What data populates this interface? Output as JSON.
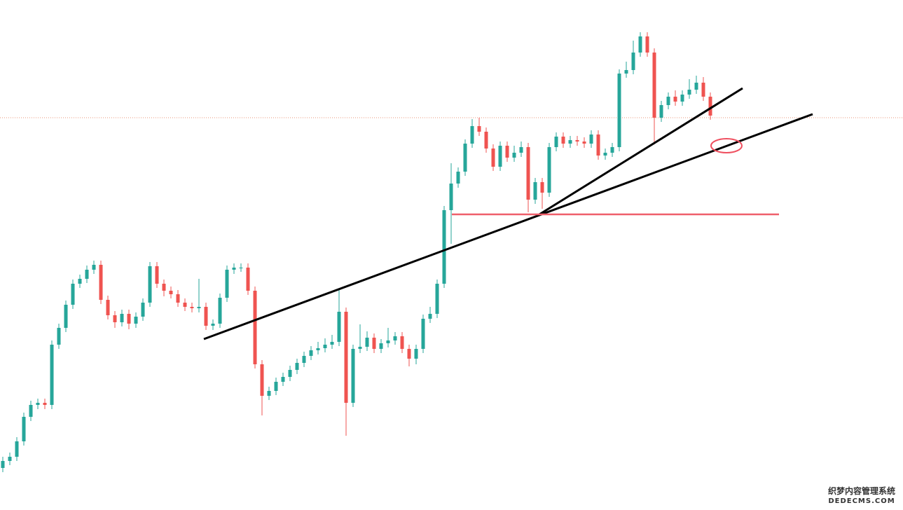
{
  "chart_data": {
    "type": "candlestick",
    "up_color": "#26a69a",
    "down_color": "#ef5350",
    "ylim": [
      0,
      728
    ],
    "open": [
      60,
      70,
      76,
      98,
      133,
      150,
      153,
      150,
      236,
      260,
      293,
      323,
      330,
      343,
      350,
      300,
      278,
      268,
      280,
      266,
      276,
      296,
      348,
      323,
      313,
      308,
      296,
      290,
      288,
      290,
      263,
      266,
      303,
      343,
      346,
      346,
      313,
      208,
      163,
      170,
      183,
      190,
      200,
      210,
      220,
      228,
      231,
      236,
      240,
      283,
      153,
      230,
      233,
      246,
      230,
      238,
      242,
      248,
      230,
      216,
      230,
      273,
      280,
      323,
      428,
      466,
      483,
      523,
      548,
      540,
      516,
      490,
      520,
      503,
      510,
      518,
      443,
      468,
      453,
      518,
      533,
      523,
      528,
      526,
      523,
      536,
      506,
      510,
      518,
      623,
      628,
      653,
      676,
      653,
      560,
      578,
      590,
      583,
      593,
      600,
      610,
      590
    ],
    "high": [
      76,
      82,
      104,
      139,
      156,
      159,
      159,
      242,
      266,
      299,
      329,
      336,
      349,
      356,
      356,
      306,
      284,
      286,
      286,
      282,
      302,
      354,
      354,
      329,
      319,
      314,
      302,
      296,
      330,
      296,
      272,
      309,
      349,
      352,
      352,
      352,
      319,
      214,
      176,
      189,
      196,
      206,
      216,
      226,
      234,
      240,
      245,
      250,
      316,
      289,
      236,
      265,
      255,
      252,
      244,
      260,
      254,
      254,
      236,
      236,
      279,
      290,
      329,
      434,
      495,
      489,
      529,
      558,
      560,
      546,
      522,
      526,
      526,
      520,
      526,
      524,
      474,
      474,
      524,
      539,
      539,
      534,
      534,
      532,
      542,
      542,
      516,
      524,
      629,
      640,
      670,
      682,
      682,
      659,
      584,
      596,
      599,
      599,
      615,
      620,
      618,
      596
    ],
    "low": [
      54,
      64,
      70,
      92,
      127,
      144,
      144,
      144,
      230,
      254,
      287,
      317,
      324,
      337,
      294,
      272,
      260,
      262,
      258,
      260,
      270,
      290,
      317,
      305,
      302,
      290,
      284,
      282,
      282,
      257,
      257,
      260,
      297,
      337,
      340,
      307,
      202,
      135,
      157,
      164,
      177,
      184,
      194,
      204,
      214,
      222,
      225,
      230,
      234,
      106,
      147,
      224,
      227,
      224,
      224,
      232,
      236,
      224,
      205,
      208,
      224,
      267,
      274,
      317,
      380,
      460,
      477,
      517,
      534,
      510,
      484,
      484,
      497,
      497,
      504,
      425,
      437,
      430,
      447,
      512,
      517,
      517,
      520,
      517,
      517,
      500,
      500,
      504,
      512,
      617,
      622,
      647,
      647,
      522,
      554,
      572,
      577,
      577,
      587,
      594,
      584,
      557
    ],
    "close": [
      70,
      76,
      98,
      133,
      150,
      153,
      150,
      236,
      260,
      293,
      323,
      330,
      343,
      350,
      300,
      278,
      268,
      280,
      266,
      276,
      296,
      348,
      323,
      313,
      308,
      296,
      290,
      288,
      290,
      263,
      266,
      303,
      343,
      346,
      346,
      313,
      208,
      163,
      170,
      183,
      190,
      200,
      210,
      220,
      228,
      231,
      236,
      240,
      283,
      153,
      230,
      233,
      246,
      230,
      238,
      242,
      248,
      230,
      216,
      230,
      273,
      280,
      323,
      428,
      466,
      483,
      523,
      548,
      540,
      516,
      490,
      520,
      503,
      510,
      518,
      443,
      468,
      453,
      518,
      533,
      523,
      528,
      526,
      523,
      536,
      506,
      510,
      518,
      623,
      628,
      653,
      676,
      653,
      560,
      578,
      590,
      583,
      593,
      600,
      610,
      590,
      563
    ]
  },
  "watermark": {
    "line1": "织梦内容管理系统",
    "line2": "DEDECMS.COM"
  }
}
